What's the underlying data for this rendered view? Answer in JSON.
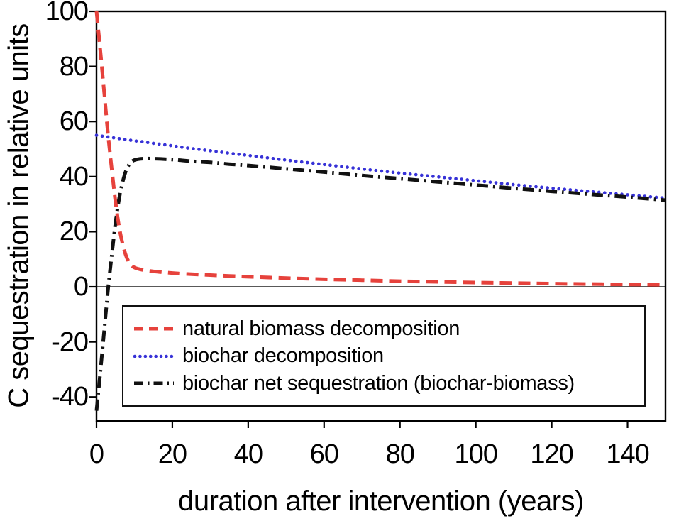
{
  "chart_data": {
    "type": "line",
    "title": "",
    "xlabel": "duration after intervention (years)",
    "ylabel": "C sequestration in relative units",
    "xlim": [
      0,
      150
    ],
    "ylim": [
      -48.7,
      100
    ],
    "x_ticks": [
      0,
      20,
      40,
      60,
      80,
      100,
      120,
      140
    ],
    "y_ticks": [
      100,
      80,
      60,
      40,
      20,
      0,
      -20,
      -40
    ],
    "grid": false,
    "zero_line": true,
    "legend_position": "inside-lower-left",
    "axis_color": "#000000",
    "x": [
      0,
      1,
      2,
      3,
      4,
      5,
      6,
      7,
      8,
      9,
      10,
      12,
      15,
      20,
      25,
      30,
      35,
      40,
      50,
      60,
      70,
      80,
      90,
      100,
      110,
      120,
      130,
      140,
      150
    ],
    "series": [
      {
        "name": "natural biomass decomposition",
        "color": "#e6423c",
        "style": "dashed",
        "values": [
          100,
          86,
          71,
          56,
          43,
          31,
          21.5,
          15,
          10.5,
          8.2,
          7.0,
          6.2,
          5.6,
          5.0,
          4.6,
          4.25,
          3.95,
          3.65,
          3.15,
          2.75,
          2.4,
          2.05,
          1.8,
          1.55,
          1.35,
          1.15,
          1.0,
          0.85,
          0.75
        ]
      },
      {
        "name": "biochar decomposition",
        "color": "#3732d7",
        "style": "dotted",
        "values": [
          55,
          54.8,
          54.6,
          54.4,
          54.2,
          54.0,
          53.8,
          53.6,
          53.4,
          53.2,
          53.0,
          52.7,
          52.1,
          51.2,
          50.2,
          49.4,
          48.5,
          47.7,
          46.0,
          44.4,
          42.8,
          41.3,
          39.9,
          38.5,
          37.1,
          35.8,
          34.6,
          33.4,
          32.2
        ]
      },
      {
        "name": "biochar net sequestration (biochar-biomass)",
        "color": "#111111",
        "style": "dashdot",
        "values": [
          -45,
          -31.2,
          -16.4,
          -1.6,
          11.2,
          23.0,
          32.3,
          38.6,
          42.9,
          45.0,
          46.0,
          46.5,
          46.5,
          46.2,
          45.6,
          45.15,
          44.55,
          44.05,
          42.85,
          41.65,
          40.4,
          39.25,
          38.1,
          36.95,
          35.75,
          34.65,
          33.6,
          32.55,
          31.45
        ]
      }
    ]
  }
}
